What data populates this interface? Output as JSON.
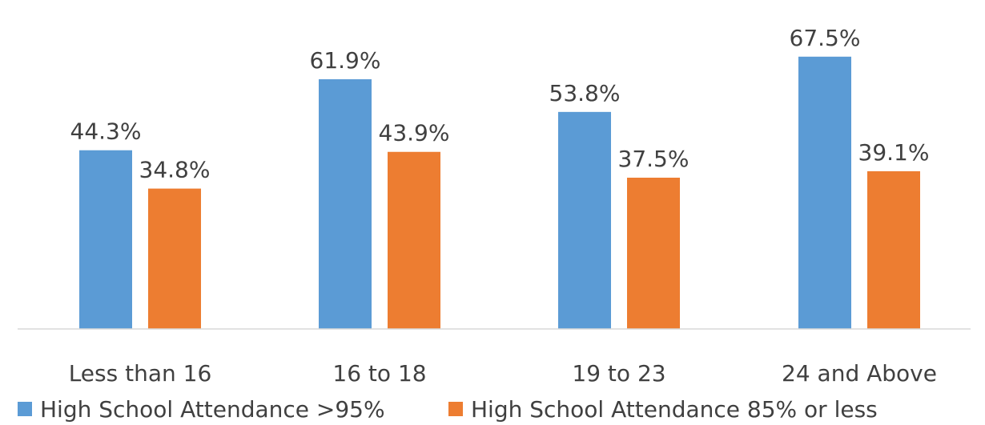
{
  "chart_data": {
    "type": "bar",
    "categories": [
      "Less than 16",
      "16 to 18",
      "19 to 23",
      "24 and Above"
    ],
    "series": [
      {
        "name": "High School Attendance >95%",
        "values": [
          44.3,
          61.9,
          53.8,
          67.5
        ],
        "labels": [
          "44.3%",
          "61.9%",
          "53.8%",
          "67.5%"
        ],
        "color": "#5B9BD5"
      },
      {
        "name": "High School Attendance 85% or less",
        "values": [
          34.8,
          43.9,
          37.5,
          39.1
        ],
        "labels": [
          "34.8%",
          "43.9%",
          "37.5%",
          "39.1%"
        ],
        "color": "#ED7D31"
      }
    ],
    "title": "",
    "xlabel": "",
    "ylabel": "",
    "ylim": [
      0,
      75
    ],
    "grid": false,
    "legend": "bottom-left"
  }
}
